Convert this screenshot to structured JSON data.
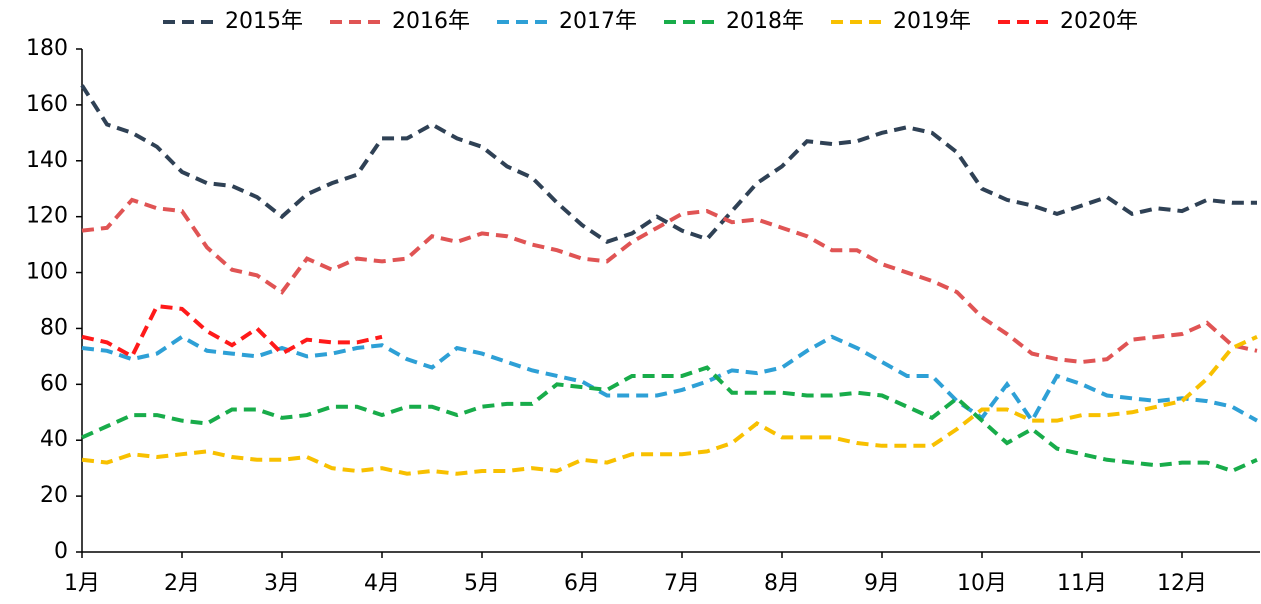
{
  "chart_data": {
    "type": "line",
    "categories": [
      "1月",
      null,
      null,
      null,
      "2月",
      null,
      null,
      null,
      "3月",
      null,
      null,
      null,
      "4月",
      null,
      null,
      null,
      "5月",
      null,
      null,
      null,
      "6月",
      null,
      null,
      null,
      "7月",
      null,
      null,
      null,
      "8月",
      null,
      null,
      null,
      "9月",
      null,
      null,
      null,
      "10月",
      null,
      null,
      null,
      "11月",
      null,
      null,
      null,
      "12月",
      null,
      null,
      null
    ],
    "series": [
      {
        "name": "2015年",
        "color": "#2f4155",
        "values": [
          167,
          153,
          150,
          145,
          136,
          132,
          131,
          127,
          120,
          128,
          132,
          135,
          148,
          148,
          153,
          148,
          145,
          138,
          134,
          125,
          117,
          111,
          114,
          120,
          115,
          112,
          122,
          132,
          138,
          147,
          146,
          147,
          150,
          152,
          150,
          143,
          130,
          126,
          124,
          121,
          124,
          127,
          121,
          123,
          122,
          126,
          125,
          125
        ]
      },
      {
        "name": "2016年",
        "color": "#e05454",
        "values": [
          115,
          116,
          126,
          123,
          122,
          109,
          101,
          99,
          93,
          105,
          101,
          105,
          104,
          105,
          113,
          111,
          114,
          113,
          110,
          108,
          105,
          104,
          111,
          116,
          121,
          122,
          118,
          119,
          116,
          113,
          108,
          108,
          103,
          100,
          97,
          93,
          84,
          78,
          71,
          69,
          68,
          69,
          76,
          77,
          78,
          82,
          74,
          72
        ]
      },
      {
        "name": "2017年",
        "color": "#2ea0d6",
        "values": [
          73,
          72,
          69,
          71,
          77,
          72,
          71,
          70,
          73,
          70,
          71,
          73,
          74,
          69,
          66,
          73,
          71,
          68,
          65,
          63,
          61,
          56,
          56,
          56,
          58,
          61,
          65,
          64,
          66,
          72,
          77,
          73,
          68,
          63,
          63,
          54,
          48,
          60,
          47,
          63,
          60,
          56,
          55,
          54,
          55,
          54,
          52,
          47
        ]
      },
      {
        "name": "2018年",
        "color": "#18ac4a",
        "values": [
          41,
          45,
          49,
          49,
          47,
          46,
          51,
          51,
          48,
          49,
          52,
          52,
          49,
          52,
          52,
          49,
          52,
          53,
          53,
          60,
          59,
          58,
          63,
          63,
          63,
          66,
          57,
          57,
          57,
          56,
          56,
          57,
          56,
          52,
          48,
          55,
          47,
          39,
          44,
          37,
          35,
          33,
          32,
          31,
          32,
          32,
          29,
          33
        ]
      },
      {
        "name": "2019年",
        "color": "#f8c000",
        "values": [
          33,
          32,
          35,
          34,
          35,
          36,
          34,
          33,
          33,
          34,
          30,
          29,
          30,
          28,
          29,
          28,
          29,
          29,
          30,
          29,
          33,
          32,
          35,
          35,
          35,
          36,
          39,
          46,
          41,
          41,
          41,
          39,
          38,
          38,
          38,
          44,
          51,
          51,
          47,
          47,
          49,
          49,
          50,
          52,
          54,
          62,
          73,
          77
        ]
      },
      {
        "name": "2020年",
        "color": "#ff1a1a",
        "values": [
          77,
          75,
          70,
          88,
          87,
          79,
          74,
          80,
          71,
          76,
          75,
          75,
          77,
          null,
          null,
          null,
          null,
          null,
          null,
          null,
          null,
          null,
          null,
          null,
          null,
          null,
          null,
          null,
          null,
          null,
          null,
          null,
          null,
          null,
          null,
          null,
          null,
          null,
          null,
          null,
          null,
          null,
          null,
          null,
          null,
          null,
          null,
          null
        ]
      }
    ],
    "ylim": [
      0,
      180
    ],
    "yticks": [
      0,
      20,
      40,
      60,
      80,
      100,
      120,
      140,
      160,
      180
    ],
    "legend": "top",
    "line_style": "dashed"
  }
}
